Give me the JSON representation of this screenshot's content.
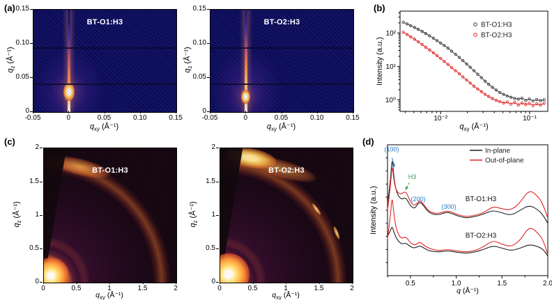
{
  "panel_tags": {
    "a": "(a)",
    "b": "(b)",
    "c": "(c)",
    "d": "(d)"
  },
  "panel_a": {
    "plots": [
      {
        "title": "BT-O1:H3"
      },
      {
        "title": "BT-O2:H3"
      }
    ],
    "xlabel": {
      "sym": "q",
      "sub": "xy",
      "unit": " (Å⁻¹)"
    },
    "ylabel": {
      "sym": "q",
      "sub": "z",
      "unit": " (Å⁻¹)"
    },
    "xticks": [
      "-0.05",
      "0",
      "0.05",
      "0.10",
      "0.15"
    ],
    "yticks": [
      "0.15",
      "0.10",
      "0.05",
      "0"
    ]
  },
  "panel_b": {
    "ylabel": "Intensity (a.u.)",
    "xlabel": {
      "sym": "q",
      "sub": "xy",
      "unit": " (Å⁻¹)"
    }
  },
  "panel_c": {
    "plots": [
      {
        "title": "BT-O1:H3"
      },
      {
        "title": "BT-O2:H3"
      }
    ],
    "xlabel": {
      "sym": "q",
      "sub": "xy",
      "unit": " (Å⁻¹)"
    },
    "ylabel": {
      "sym": "q",
      "sub": "z",
      "unit": " (Å⁻¹)"
    },
    "xticks": [
      "0",
      "0.5",
      "1",
      "1.5",
      "2"
    ],
    "yticks": [
      "2",
      "1.5",
      "1",
      "0.5",
      "0"
    ]
  },
  "panel_d": {
    "ylabel": "Intensity (a.u.)",
    "xlabel": {
      "sym": "q",
      "sub": "",
      "unit": " (Å⁻¹)"
    }
  },
  "chart_data": [
    {
      "id": "a",
      "type": "heatmap",
      "technique": "GISAXS 2D detector images",
      "xlabel": "q_xy (Å⁻¹)",
      "ylabel": "q_z (Å⁻¹)",
      "xlim": [
        -0.05,
        0.15
      ],
      "ylim": [
        0,
        0.15
      ],
      "colormap": "dark navy background with white-yellow-orange specular intensity",
      "plots": [
        {
          "title": "BT-O1:H3",
          "features": [
            "intense specular rod along q_xy = 0",
            "bright beam spot near q_z ≈ 0.03",
            "dark detector gap lines at q_z ≈ 0.095 and 0.04"
          ]
        },
        {
          "title": "BT-O2:H3",
          "features": [
            "intense specular rod along q_xy = 0",
            "bright beam spot near q_z ≈ 0.02",
            "dark detector gap lines at q_z ≈ 0.095 and 0.04"
          ]
        }
      ]
    },
    {
      "id": "b",
      "type": "scatter",
      "xlabel": "q_xy (Å⁻¹)",
      "ylabel": "Intensity (a.u.)",
      "xscale": "log",
      "yscale": "log",
      "xlim": [
        0.0035,
        0.16
      ],
      "ylim": [
        0.45,
        450
      ],
      "xtick_values": [
        0.01,
        0.1
      ],
      "xticks": [
        "10⁻²",
        "10⁻¹"
      ],
      "ytick_values": [
        1,
        10,
        100
      ],
      "yticks": [
        "10⁰",
        "10¹",
        "10²"
      ],
      "legend_position": "top-right",
      "series": [
        {
          "name": "BT-O1:H3",
          "color": "#3a3a3a",
          "marker": "open-circle",
          "points": [
            [
              0.0038,
              210
            ],
            [
              0.0042,
              186
            ],
            [
              0.0046,
              165
            ],
            [
              0.0051,
              146
            ],
            [
              0.0056,
              128
            ],
            [
              0.0062,
              111
            ],
            [
              0.0068,
              96
            ],
            [
              0.0075,
              82
            ],
            [
              0.0083,
              70
            ],
            [
              0.0091,
              59
            ],
            [
              0.01,
              50
            ],
            [
              0.011,
              42
            ],
            [
              0.0121,
              35
            ],
            [
              0.0133,
              28.5
            ],
            [
              0.0147,
              23
            ],
            [
              0.0162,
              18.5
            ],
            [
              0.0178,
              14.8
            ],
            [
              0.0196,
              11.8
            ],
            [
              0.0215,
              9.4
            ],
            [
              0.0237,
              7.4
            ],
            [
              0.0261,
              5.8
            ],
            [
              0.0287,
              4.6
            ],
            [
              0.0316,
              3.6
            ],
            [
              0.0347,
              2.9
            ],
            [
              0.0382,
              2.35
            ],
            [
              0.0421,
              1.95
            ],
            [
              0.0463,
              1.65
            ],
            [
              0.0509,
              1.45
            ],
            [
              0.056,
              1.3
            ],
            [
              0.0616,
              1.2
            ],
            [
              0.0678,
              1.1
            ],
            [
              0.0746,
              1.05
            ],
            [
              0.082,
              1.12
            ],
            [
              0.0903,
              0.95
            ],
            [
              0.0993,
              1.06
            ],
            [
              0.1092,
              0.92
            ],
            [
              0.1202,
              1.02
            ],
            [
              0.1322,
              0.94
            ],
            [
              0.1454,
              1.0
            ]
          ]
        },
        {
          "name": "BT-O2:H3",
          "color": "#e02424",
          "marker": "open-circle",
          "points": [
            [
              0.0038,
              105
            ],
            [
              0.0042,
              90
            ],
            [
              0.0046,
              77
            ],
            [
              0.0051,
              65
            ],
            [
              0.0056,
              54
            ],
            [
              0.0062,
              45
            ],
            [
              0.0068,
              37.5
            ],
            [
              0.0075,
              31
            ],
            [
              0.0083,
              25.5
            ],
            [
              0.0091,
              21
            ],
            [
              0.01,
              17.2
            ],
            [
              0.011,
              14
            ],
            [
              0.0121,
              11.4
            ],
            [
              0.0133,
              9.2
            ],
            [
              0.0147,
              7.4
            ],
            [
              0.0162,
              6.0
            ],
            [
              0.0178,
              4.8
            ],
            [
              0.0196,
              3.9
            ],
            [
              0.0215,
              3.15
            ],
            [
              0.0237,
              2.55
            ],
            [
              0.0261,
              2.1
            ],
            [
              0.0287,
              1.75
            ],
            [
              0.0316,
              1.45
            ],
            [
              0.0347,
              1.25
            ],
            [
              0.0382,
              1.08
            ],
            [
              0.0421,
              0.96
            ],
            [
              0.0463,
              0.88
            ],
            [
              0.0509,
              0.8
            ],
            [
              0.056,
              0.86
            ],
            [
              0.0616,
              0.74
            ],
            [
              0.0678,
              0.83
            ],
            [
              0.0746,
              0.7
            ],
            [
              0.082,
              0.8
            ],
            [
              0.0903,
              0.72
            ],
            [
              0.0993,
              0.78
            ],
            [
              0.1092,
              0.67
            ],
            [
              0.1202,
              0.76
            ],
            [
              0.1322,
              0.7
            ],
            [
              0.1454,
              0.78
            ]
          ]
        }
      ]
    },
    {
      "id": "c",
      "type": "heatmap",
      "technique": "GIWAXS 2D detector images",
      "xlabel": "q_xy (Å⁻¹)",
      "ylabel": "q_z (Å⁻¹)",
      "xlim": [
        0,
        2
      ],
      "ylim": [
        0,
        2
      ],
      "colormap": "black-purple-orange-yellow",
      "plots": [
        {
          "title": "BT-O1:H3",
          "features": [
            "strong small-angle scattering at origin",
            "ring at q ≈ 0.35",
            "diffuse halo at q ≈ 1.8 brightest toward q_z axis"
          ]
        },
        {
          "title": "BT-O2:H3",
          "features": [
            "strong small-angle scattering at origin",
            "intense out-of-plane arc at q ≈ 1.85",
            "sharp Bragg spots on ring near (1.45, 1.05) and (1.75, 0.65)"
          ]
        }
      ]
    },
    {
      "id": "d",
      "type": "line",
      "xlabel": "q (Å⁻¹)",
      "ylabel": "Intensity (a.u.)",
      "xlim": [
        0.25,
        2.0
      ],
      "xtick_values": [
        0.5,
        1.0,
        1.5,
        2.0
      ],
      "xticks": [
        "0.5",
        "1.0",
        "1.5",
        "2.0"
      ],
      "y_scale": "normalized 0-100 (a.u., stacked offsets)",
      "legend": [
        "In-plane",
        "Out-of-plane"
      ],
      "legend_position": "top-right",
      "colors": {
        "in_plane": "#1f1f1f",
        "out_of_plane": "#e02424"
      },
      "x": [
        0.25,
        0.28,
        0.3,
        0.32,
        0.35,
        0.4,
        0.45,
        0.5,
        0.55,
        0.6,
        0.65,
        0.7,
        0.8,
        0.9,
        1.0,
        1.1,
        1.2,
        1.3,
        1.4,
        1.5,
        1.6,
        1.7,
        1.8,
        1.9,
        1.95,
        2.0
      ],
      "series": [
        {
          "name": "BT-O1:H3 in-plane",
          "group": "BT-O1:H3",
          "type": "in_plane",
          "y": [
            55,
            70,
            92,
            74,
            63,
            58,
            60,
            53,
            51,
            57,
            53,
            48,
            46,
            49,
            46,
            44,
            45,
            47,
            50,
            48,
            46,
            50,
            54,
            50,
            46,
            40
          ]
        },
        {
          "name": "BT-O1:H3 out-of-plane",
          "group": "BT-O1:H3",
          "type": "out_of_plane",
          "y": [
            50,
            66,
            86,
            72,
            64,
            62,
            65,
            56,
            53,
            58,
            54,
            49,
            47,
            50,
            47,
            45,
            46,
            48,
            53,
            51,
            50,
            56,
            66,
            60,
            54,
            44
          ]
        },
        {
          "name": "BT-O2:H3 in-plane",
          "group": "BT-O2:H3",
          "type": "in_plane",
          "y": [
            30,
            34,
            38,
            33,
            28,
            24,
            25,
            22,
            21,
            23,
            21,
            19,
            18,
            19,
            18,
            17,
            18,
            20,
            23,
            21,
            19,
            21,
            24,
            22,
            20,
            15
          ]
        },
        {
          "name": "BT-O2:H3 out-of-plane",
          "group": "BT-O2:H3",
          "type": "out_of_plane",
          "y": [
            28,
            44,
            62,
            46,
            34,
            28,
            30,
            25,
            23,
            26,
            23,
            21,
            19,
            20,
            19,
            18,
            19,
            22,
            27,
            24,
            22,
            27,
            38,
            32,
            27,
            16
          ]
        }
      ],
      "group_labels": [
        {
          "text": "BT-O1:H3",
          "x": 1.1,
          "y": 57
        },
        {
          "text": "BT-O2:H3",
          "x": 1.1,
          "y": 29
        }
      ],
      "annotations": [
        {
          "text": "(100)",
          "color": "#2176c7",
          "x": 0.295,
          "y": 95,
          "arrow_from": [
            0.3,
            90
          ],
          "arrow_to": [
            0.325,
            83
          ],
          "dashed": false
        },
        {
          "text": "H3",
          "color": "#2e9e4f",
          "x": 0.52,
          "y": 74,
          "arrow_from": [
            0.487,
            71
          ],
          "arrow_to": [
            0.447,
            65.5
          ],
          "dashed": true
        },
        {
          "text": "(200)",
          "color": "#2176c7",
          "x": 0.585,
          "y": 57
        },
        {
          "text": "(300)",
          "color": "#2176c7",
          "x": 0.92,
          "y": 51
        }
      ]
    }
  ]
}
